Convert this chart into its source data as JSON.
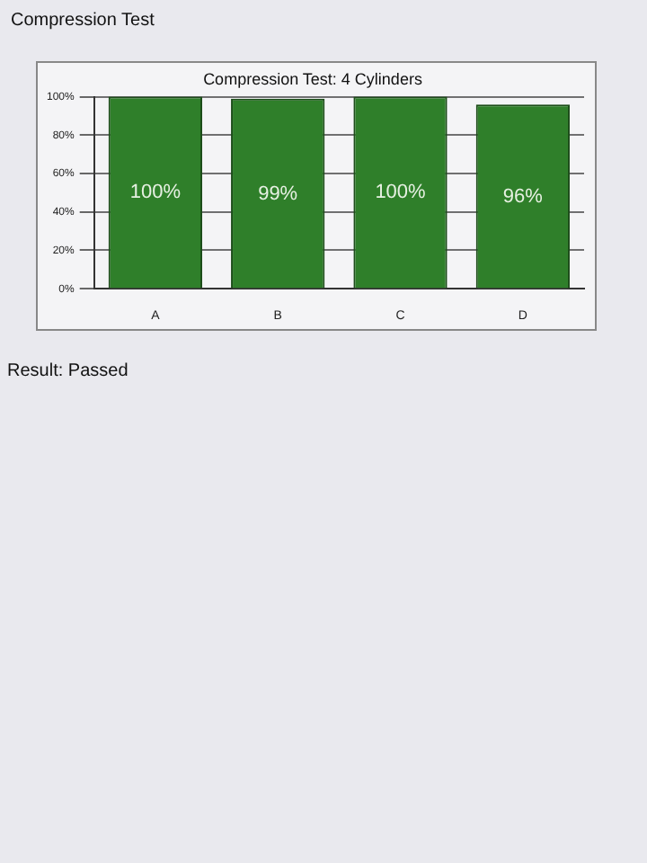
{
  "chart_data": {
    "type": "bar",
    "title": "Compression Test: 4 Cylinders",
    "categories": [
      "A",
      "B",
      "C",
      "D"
    ],
    "values": [
      100,
      99,
      100,
      96
    ],
    "color": "#2f7f2a",
    "value_labels": [
      "100%",
      "99%",
      "100%",
      "96%"
    ],
    "ylim": [
      0,
      100
    ],
    "yticks": [
      {
        "value": 0,
        "label": "0%"
      },
      {
        "value": 20,
        "label": "20%"
      },
      {
        "value": 40,
        "label": "40%"
      },
      {
        "value": 60,
        "label": "60%"
      },
      {
        "value": 80,
        "label": "80%"
      },
      {
        "value": 100,
        "label": "100%"
      }
    ],
    "grid": "y",
    "legend": false,
    "annotations": [
      "Compression Test",
      "Result: Passed"
    ]
  }
}
